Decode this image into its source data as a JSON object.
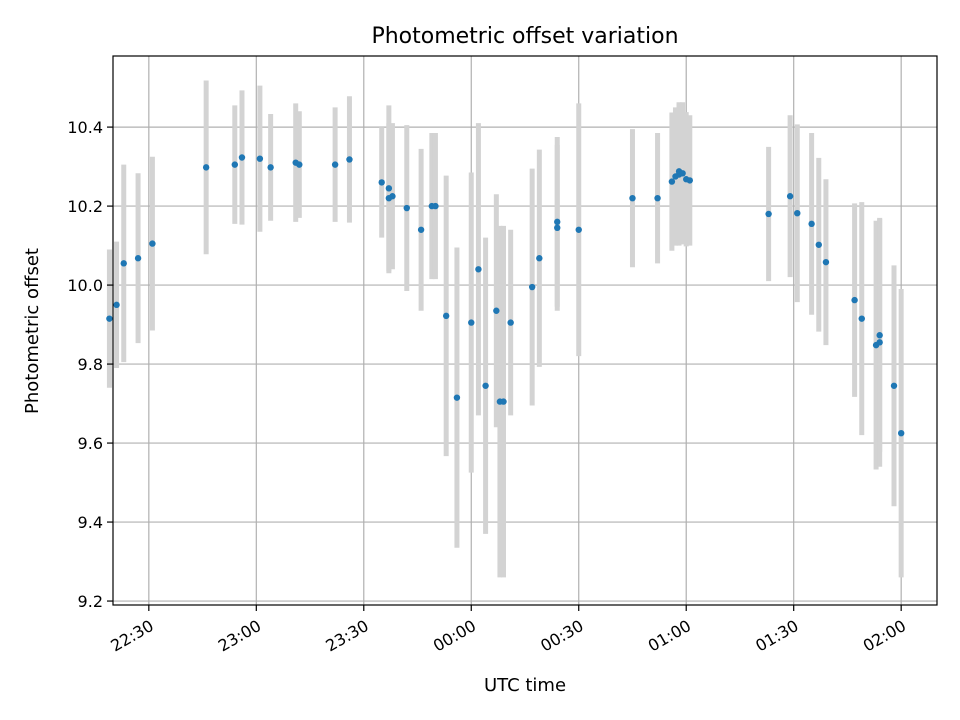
{
  "chart_data": {
    "type": "scatter",
    "title": "Photometric offset variation",
    "xlabel": "UTC time",
    "ylabel": "Photometric offset",
    "grid": true,
    "x_ticks": [
      "22:30",
      "23:00",
      "23:30",
      "00:00",
      "00:30",
      "01:00",
      "01:30",
      "02:00"
    ],
    "y_ticks": [
      "9.2",
      "9.4",
      "9.6",
      "9.8",
      "10.0",
      "10.2",
      "10.4"
    ],
    "xlim": [
      "22:20",
      "02:10"
    ],
    "ylim": [
      9.19,
      10.58
    ],
    "colors": {
      "point": "#1f77b4",
      "errorbar": "#d3d3d3",
      "grid": "#b0b0b0"
    },
    "series": [
      {
        "x": [
          "22:19",
          "22:21",
          "22:23",
          "22:27",
          "22:31",
          "22:46",
          "22:54",
          "22:56",
          "23:01",
          "23:04",
          "23:11",
          "23:12",
          "23:22",
          "23:26",
          "23:35",
          "23:37",
          "23:37",
          "23:38",
          "23:42",
          "23:46",
          "23:49",
          "23:50",
          "23:53",
          "23:56",
          "24:00",
          "24:02",
          "24:04",
          "24:07",
          "24:08",
          "24:09",
          "24:11",
          "24:17",
          "24:19",
          "24:24",
          "24:24",
          "24:30",
          "24:45",
          "24:52",
          "24:56",
          "24:57",
          "24:58",
          "24:58",
          "24:59",
          "25:00",
          "25:01",
          "25:23",
          "25:29",
          "25:31",
          "25:35",
          "25:37",
          "25:39",
          "25:47",
          "25:49",
          "25:53",
          "25:54",
          "25:54",
          "25:58",
          "26:00"
        ],
        "y": [
          9.915,
          9.95,
          10.055,
          10.068,
          10.105,
          10.298,
          10.305,
          10.323,
          10.32,
          10.298,
          10.31,
          10.305,
          10.305,
          10.318,
          10.26,
          10.245,
          10.22,
          10.225,
          10.195,
          10.14,
          10.2,
          10.2,
          9.922,
          9.715,
          9.905,
          10.04,
          9.745,
          9.935,
          9.705,
          9.705,
          9.905,
          9.995,
          10.068,
          10.145,
          10.16,
          10.14,
          10.22,
          10.22,
          10.262,
          10.275,
          10.28,
          10.288,
          10.283,
          10.268,
          10.265,
          10.18,
          10.225,
          10.182,
          10.155,
          10.102,
          10.058,
          9.962,
          9.915,
          9.848,
          9.873,
          9.855,
          9.745,
          9.625
        ],
        "yerr": [
          0.175,
          0.16,
          0.25,
          0.215,
          0.22,
          0.22,
          0.15,
          0.17,
          0.185,
          0.135,
          0.15,
          0.135,
          0.145,
          0.16,
          0.14,
          0.21,
          0.19,
          0.185,
          0.21,
          0.205,
          0.185,
          0.185,
          0.355,
          0.38,
          0.38,
          0.37,
          0.375,
          0.295,
          0.445,
          0.445,
          0.235,
          0.3,
          0.275,
          0.21,
          0.215,
          0.32,
          0.175,
          0.165,
          0.175,
          0.175,
          0.18,
          0.175,
          0.18,
          0.17,
          0.165,
          0.17,
          0.205,
          0.225,
          0.23,
          0.22,
          0.21,
          0.245,
          0.295,
          0.315,
          0.295,
          0.315,
          0.305,
          0.365
        ]
      }
    ]
  }
}
